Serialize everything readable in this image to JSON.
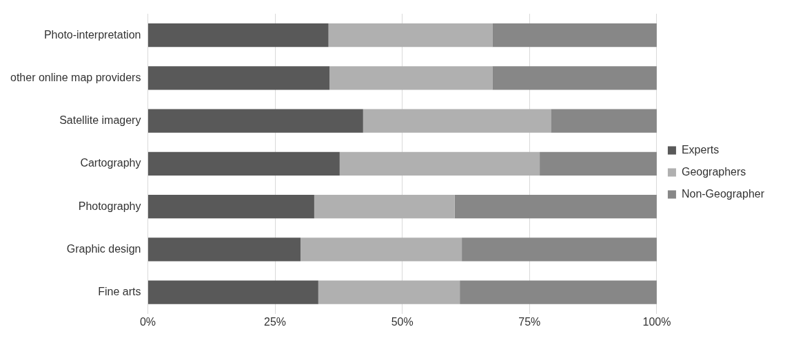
{
  "chart_data": {
    "type": "bar",
    "orientation": "horizontal",
    "stacked": true,
    "categories": [
      "Photo-interpretation",
      "other online map providers",
      "Satellite imagery",
      "Cartography",
      "Photography",
      "Graphic design",
      "Fine arts"
    ],
    "series": [
      {
        "name": "Experts",
        "color": "#595959",
        "values": [
          35.5,
          35.7,
          42.3,
          37.7,
          32.7,
          30,
          33.5
        ]
      },
      {
        "name": "Geographers",
        "color": "#b0b0b0",
        "values": [
          32.2,
          32,
          36.9,
          39.3,
          27.6,
          31.7,
          27.8
        ]
      },
      {
        "name": "Non-Geographer",
        "color": "#878787",
        "values": [
          32.3,
          32.3,
          20.8,
          23,
          39.7,
          38.3,
          38.7
        ]
      }
    ],
    "xlim": [
      0,
      100
    ],
    "xticks": [
      {
        "value": 0,
        "label": "0%"
      },
      {
        "value": 25,
        "label": "25%"
      },
      {
        "value": 50,
        "label": "50%"
      },
      {
        "value": 75,
        "label": "75%"
      },
      {
        "value": 100,
        "label": "100%"
      }
    ],
    "grid": "x",
    "legend": "right"
  }
}
